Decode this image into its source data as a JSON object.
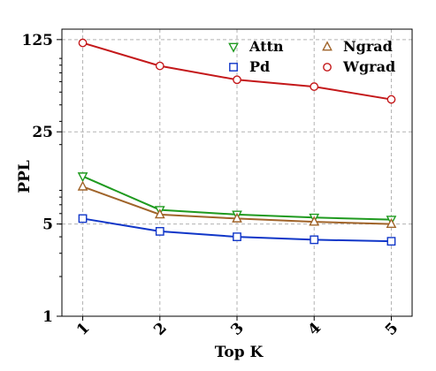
{
  "chart_data": {
    "type": "line",
    "title": "",
    "xlabel": "Top K",
    "ylabel": "PPL",
    "x": [
      1,
      2,
      3,
      4,
      5
    ],
    "xtick_labels": [
      "1",
      "2",
      "3",
      "4",
      "5"
    ],
    "yscale": "log",
    "ylim": [
      1,
      150
    ],
    "yticks": [
      1,
      5,
      25,
      125
    ],
    "ytick_labels": [
      "1",
      "5",
      "25",
      "125"
    ],
    "grid": true,
    "legend_position": "top-right",
    "series": [
      {
        "name": "Attn",
        "values": [
          11.5,
          6.4,
          5.9,
          5.6,
          5.4
        ],
        "color": "#1f9a1f",
        "marker": "triangle-down"
      },
      {
        "name": "Ngrad",
        "values": [
          9.6,
          5.9,
          5.5,
          5.2,
          5.0
        ],
        "color": "#a0642a",
        "marker": "triangle-up"
      },
      {
        "name": "Pd",
        "values": [
          5.5,
          4.4,
          4.0,
          3.8,
          3.7
        ],
        "color": "#1036c8",
        "marker": "square"
      },
      {
        "name": "Wgrad",
        "values": [
          118,
          79,
          62,
          55,
          44
        ],
        "color": "#c4181a",
        "marker": "circle"
      }
    ]
  }
}
